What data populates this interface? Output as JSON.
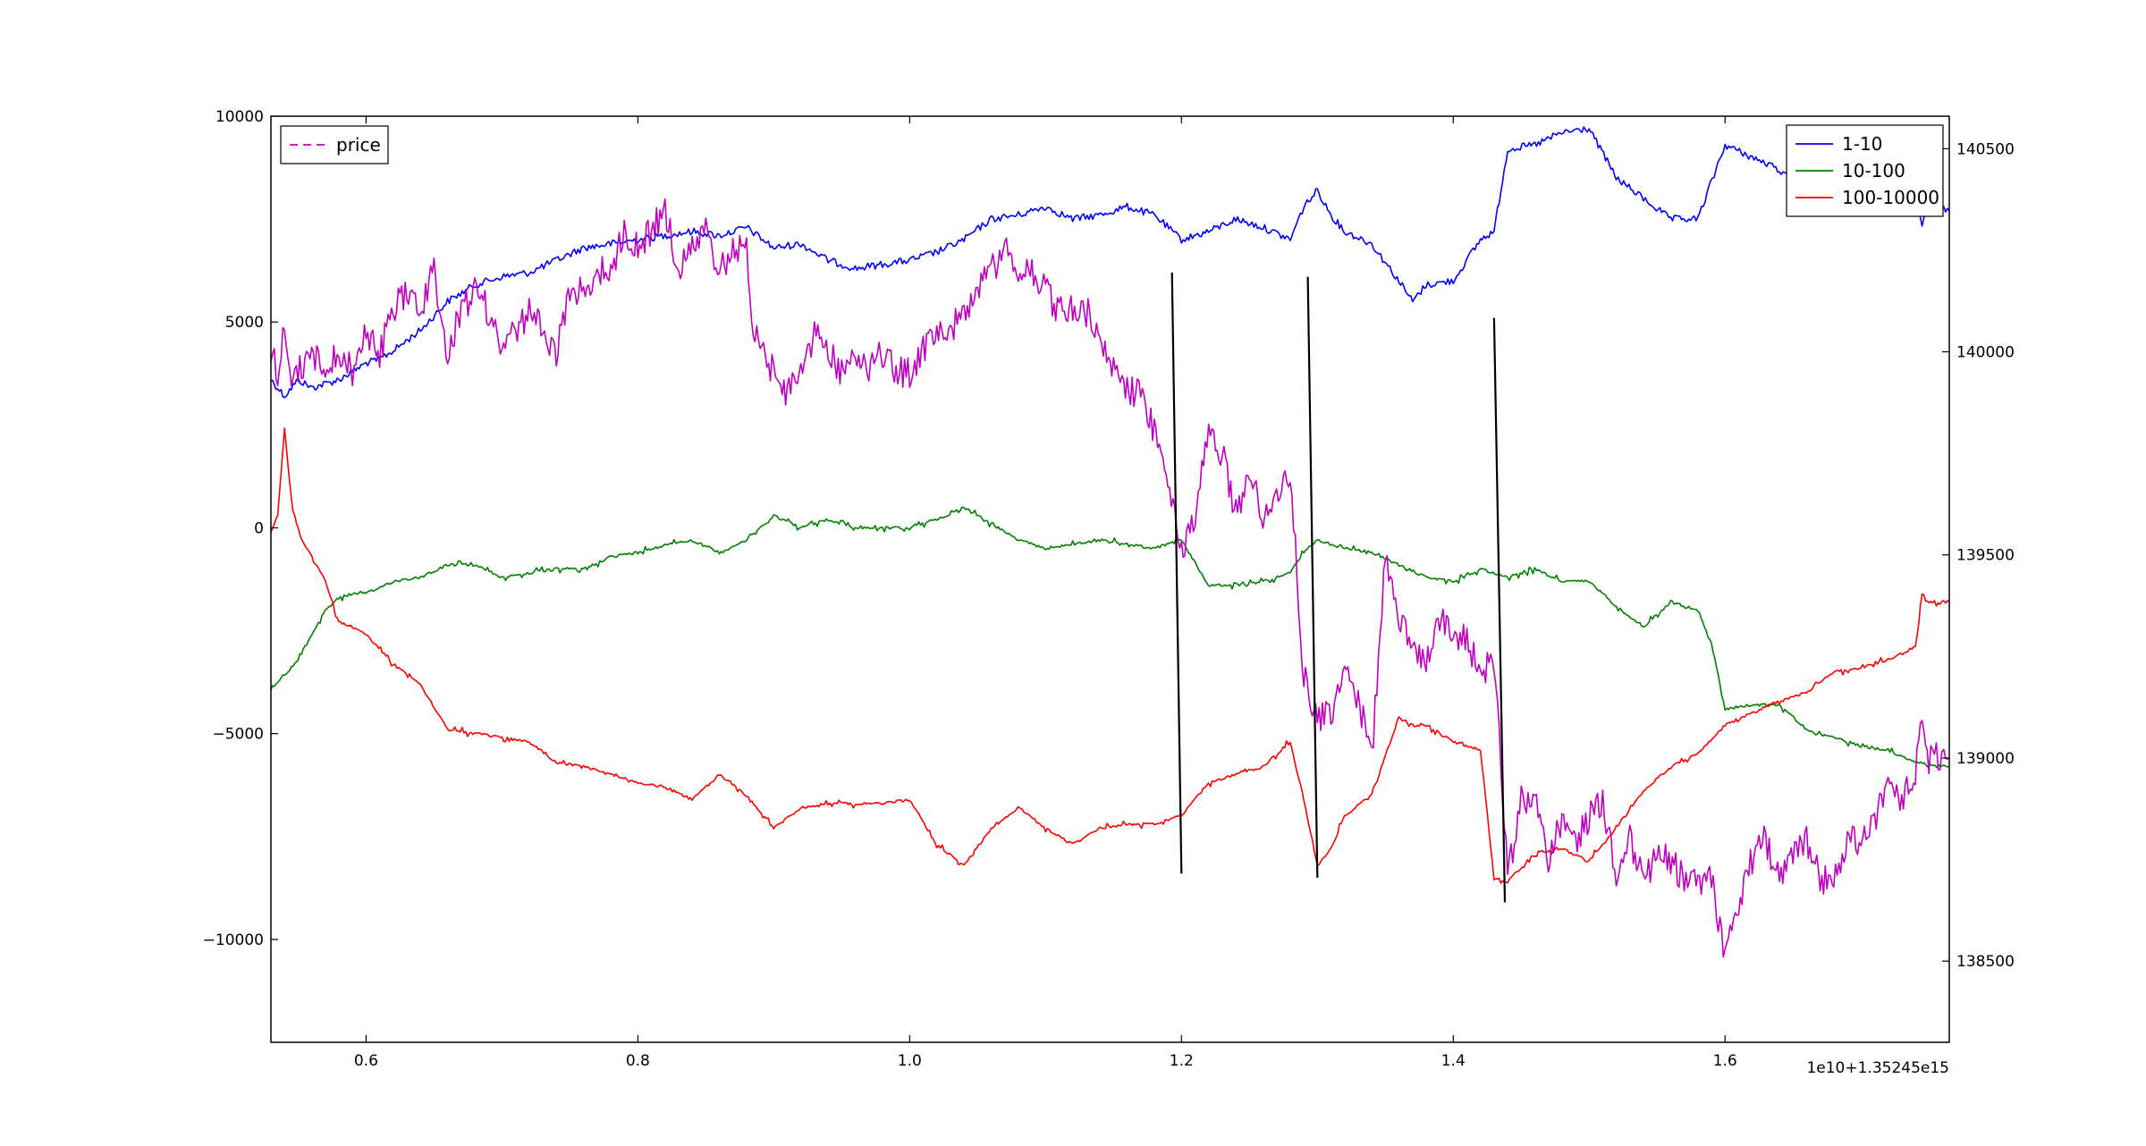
{
  "chart_data": {
    "type": "line",
    "title": "",
    "xlabel": "",
    "ylabel": "",
    "x_offset_text": "1e10+1.35245e15",
    "xlim": [
      0.53,
      1.765
    ],
    "ylim_left": [
      -12500,
      10000
    ],
    "ylim_right": [
      138300,
      140580
    ],
    "grid": false,
    "x_ticks": [
      0.6,
      0.8,
      1.0,
      1.2,
      1.4,
      1.6
    ],
    "x_tick_labels": [
      "0.6",
      "0.8",
      "1.0",
      "1.2",
      "1.4",
      "1.6"
    ],
    "y_left_ticks": [
      10000,
      5000,
      0,
      -5000,
      -10000
    ],
    "y_left_tick_labels": [
      "10000",
      "5000",
      "0",
      "−5000",
      "−10000"
    ],
    "y_right_ticks": [
      140500,
      140000,
      139500,
      139000,
      138500
    ],
    "y_right_tick_labels": [
      "140500",
      "140000",
      "139500",
      "139000",
      "138500"
    ],
    "legend_left": {
      "placement": "upper-left",
      "entries": [
        {
          "label": "price",
          "color": "#bf00bf",
          "dashed": true
        }
      ]
    },
    "legend_right": {
      "placement": "upper-right",
      "entries": [
        {
          "label": "1-10",
          "color": "#0000ff"
        },
        {
          "label": "10-100",
          "color": "#008000"
        },
        {
          "label": "100-10000",
          "color": "#ff0000"
        }
      ]
    },
    "series": [
      {
        "name": "1-10",
        "axis": "left",
        "color": "#0000ff",
        "x": [
          0.53,
          0.54,
          0.55,
          0.56,
          0.57,
          0.58,
          0.59,
          0.6,
          0.61,
          0.62,
          0.64,
          0.66,
          0.68,
          0.7,
          0.72,
          0.74,
          0.76,
          0.78,
          0.8,
          0.82,
          0.84,
          0.86,
          0.88,
          0.9,
          0.92,
          0.94,
          0.96,
          0.98,
          1.0,
          1.02,
          1.04,
          1.06,
          1.08,
          1.1,
          1.12,
          1.14,
          1.16,
          1.18,
          1.2,
          1.22,
          1.24,
          1.26,
          1.28,
          1.29,
          1.3,
          1.31,
          1.32,
          1.34,
          1.36,
          1.37,
          1.38,
          1.4,
          1.42,
          1.43,
          1.44,
          1.46,
          1.48,
          1.5,
          1.52,
          1.54,
          1.56,
          1.58,
          1.6,
          1.62,
          1.64,
          1.66,
          1.68,
          1.7,
          1.72,
          1.74,
          1.745,
          1.75,
          1.765
        ],
        "y": [
          3600,
          3200,
          3600,
          3400,
          3500,
          3600,
          3800,
          4000,
          4100,
          4300,
          4800,
          5500,
          5900,
          6100,
          6200,
          6500,
          6800,
          6900,
          7000,
          7100,
          7200,
          7100,
          7300,
          6800,
          6900,
          6500,
          6300,
          6400,
          6500,
          6700,
          7000,
          7500,
          7600,
          7800,
          7500,
          7600,
          7800,
          7600,
          7000,
          7200,
          7500,
          7300,
          7000,
          7800,
          8200,
          7600,
          7200,
          6900,
          6000,
          5500,
          5900,
          6000,
          7000,
          7200,
          9200,
          9300,
          9600,
          9700,
          8500,
          8000,
          7500,
          7500,
          9300,
          9000,
          8700,
          8100,
          8200,
          8600,
          8300,
          8200,
          7400,
          7800,
          7700
        ]
      },
      {
        "name": "10-100",
        "axis": "left",
        "color": "#008000",
        "x": [
          0.53,
          0.54,
          0.55,
          0.56,
          0.57,
          0.58,
          0.59,
          0.6,
          0.62,
          0.64,
          0.66,
          0.68,
          0.7,
          0.72,
          0.74,
          0.76,
          0.78,
          0.8,
          0.82,
          0.84,
          0.86,
          0.88,
          0.9,
          0.92,
          0.94,
          0.96,
          0.98,
          1.0,
          1.02,
          1.04,
          1.06,
          1.08,
          1.1,
          1.12,
          1.14,
          1.16,
          1.18,
          1.2,
          1.22,
          1.24,
          1.26,
          1.28,
          1.29,
          1.3,
          1.32,
          1.34,
          1.36,
          1.38,
          1.4,
          1.42,
          1.44,
          1.46,
          1.48,
          1.5,
          1.52,
          1.54,
          1.56,
          1.58,
          1.59,
          1.6,
          1.62,
          1.64,
          1.66,
          1.68,
          1.7,
          1.72,
          1.74,
          1.765
        ],
        "y": [
          -3900,
          -3600,
          -3200,
          -2600,
          -2000,
          -1700,
          -1600,
          -1600,
          -1300,
          -1200,
          -900,
          -900,
          -1200,
          -1100,
          -1000,
          -1000,
          -700,
          -600,
          -400,
          -300,
          -600,
          -300,
          300,
          0,
          200,
          0,
          0,
          0,
          200,
          500,
          100,
          -300,
          -500,
          -400,
          -300,
          -400,
          -500,
          -300,
          -1400,
          -1400,
          -1300,
          -1100,
          -600,
          -300,
          -500,
          -600,
          -900,
          -1200,
          -1300,
          -1000,
          -1200,
          -1000,
          -1300,
          -1300,
          -1900,
          -2400,
          -1800,
          -2000,
          -2800,
          -4400,
          -4300,
          -4300,
          -4900,
          -5100,
          -5300,
          -5400,
          -5700,
          -5800
        ]
      },
      {
        "name": "100-10000",
        "axis": "left",
        "color": "#ff0000",
        "x": [
          0.53,
          0.535,
          0.54,
          0.545,
          0.55,
          0.56,
          0.57,
          0.58,
          0.59,
          0.6,
          0.62,
          0.64,
          0.66,
          0.68,
          0.7,
          0.72,
          0.74,
          0.76,
          0.78,
          0.8,
          0.82,
          0.84,
          0.86,
          0.88,
          0.9,
          0.92,
          0.94,
          0.96,
          0.98,
          1.0,
          1.02,
          1.04,
          1.06,
          1.08,
          1.1,
          1.12,
          1.14,
          1.16,
          1.18,
          1.2,
          1.22,
          1.24,
          1.26,
          1.28,
          1.29,
          1.3,
          1.31,
          1.32,
          1.34,
          1.36,
          1.37,
          1.38,
          1.4,
          1.42,
          1.43,
          1.44,
          1.46,
          1.48,
          1.5,
          1.52,
          1.54,
          1.56,
          1.58,
          1.6,
          1.62,
          1.64,
          1.66,
          1.68,
          1.7,
          1.72,
          1.74,
          1.745,
          1.75,
          1.765
        ],
        "y": [
          -100,
          300,
          2400,
          700,
          -100,
          -700,
          -1300,
          -2300,
          -2400,
          -2600,
          -3300,
          -3800,
          -4900,
          -5000,
          -5100,
          -5200,
          -5700,
          -5800,
          -6000,
          -6200,
          -6300,
          -6600,
          -6000,
          -6500,
          -7300,
          -6800,
          -6700,
          -6700,
          -6700,
          -6600,
          -7700,
          -8200,
          -7300,
          -6800,
          -7300,
          -7700,
          -7300,
          -7200,
          -7200,
          -7000,
          -6200,
          -6000,
          -5800,
          -5200,
          -6600,
          -8200,
          -7800,
          -7000,
          -6500,
          -4600,
          -4800,
          -4800,
          -5200,
          -5400,
          -8500,
          -8600,
          -7900,
          -7800,
          -8100,
          -7300,
          -6400,
          -5800,
          -5500,
          -4800,
          -4500,
          -4200,
          -4000,
          -3500,
          -3400,
          -3200,
          -2900,
          -1600,
          -1800,
          -1800
        ]
      },
      {
        "name": "price",
        "axis": "right",
        "color": "#bf00bf",
        "dashed": true,
        "x": [
          0.53,
          0.535,
          0.54,
          0.545,
          0.55,
          0.56,
          0.57,
          0.58,
          0.59,
          0.6,
          0.61,
          0.62,
          0.63,
          0.64,
          0.65,
          0.66,
          0.67,
          0.68,
          0.69,
          0.7,
          0.71,
          0.72,
          0.73,
          0.74,
          0.75,
          0.76,
          0.77,
          0.78,
          0.79,
          0.8,
          0.81,
          0.82,
          0.83,
          0.84,
          0.85,
          0.86,
          0.87,
          0.88,
          0.885,
          0.89,
          0.9,
          0.91,
          0.92,
          0.93,
          0.94,
          0.95,
          0.96,
          0.97,
          0.98,
          0.99,
          1.0,
          1.01,
          1.02,
          1.03,
          1.04,
          1.05,
          1.06,
          1.07,
          1.08,
          1.09,
          1.1,
          1.11,
          1.12,
          1.13,
          1.14,
          1.15,
          1.16,
          1.17,
          1.18,
          1.19,
          1.195,
          1.2,
          1.21,
          1.22,
          1.23,
          1.24,
          1.25,
          1.26,
          1.27,
          1.28,
          1.285,
          1.29,
          1.3,
          1.31,
          1.32,
          1.33,
          1.34,
          1.35,
          1.36,
          1.37,
          1.38,
          1.39,
          1.4,
          1.41,
          1.42,
          1.43,
          1.435,
          1.44,
          1.45,
          1.46,
          1.47,
          1.48,
          1.49,
          1.5,
          1.51,
          1.52,
          1.53,
          1.54,
          1.55,
          1.56,
          1.57,
          1.58,
          1.59,
          1.6,
          1.61,
          1.62,
          1.63,
          1.64,
          1.65,
          1.66,
          1.67,
          1.68,
          1.69,
          1.7,
          1.71,
          1.72,
          1.73,
          1.74,
          1.745,
          1.75,
          1.765
        ],
        "y": [
          140000,
          139950,
          140050,
          139900,
          139950,
          140000,
          139950,
          140000,
          139950,
          140050,
          140000,
          140100,
          140150,
          140100,
          140200,
          140000,
          140100,
          140150,
          140100,
          140000,
          140050,
          140100,
          140050,
          140000,
          140150,
          140150,
          140200,
          140200,
          140300,
          140250,
          140300,
          140350,
          140200,
          140250,
          140300,
          140200,
          140250,
          140250,
          140050,
          140000,
          139950,
          139900,
          139950,
          140050,
          140000,
          139950,
          140000,
          139950,
          140000,
          139950,
          139950,
          140000,
          140050,
          140050,
          140100,
          140150,
          140200,
          140250,
          140200,
          140200,
          140150,
          140100,
          140100,
          140100,
          140050,
          139950,
          139900,
          139900,
          139800,
          139700,
          139600,
          139500,
          139600,
          139800,
          139750,
          139600,
          139700,
          139600,
          139650,
          139700,
          139450,
          139200,
          139100,
          139100,
          139200,
          139150,
          139000,
          139500,
          139350,
          139250,
          139250,
          139350,
          139300,
          139300,
          139200,
          139250,
          139000,
          138700,
          138900,
          138900,
          138750,
          138850,
          138800,
          138850,
          138900,
          138700,
          138800,
          138700,
          138750,
          138750,
          138700,
          138700,
          138700,
          138500,
          138650,
          138750,
          138800,
          138700,
          138750,
          138800,
          138700,
          138700,
          138800,
          138800,
          138850,
          138950,
          138900,
          138950,
          139100,
          139000,
          139000
        ]
      },
      {
        "name": "",
        "axis": "left",
        "color": "#000000",
        "x": [
          1.193,
          1.2
        ],
        "y": [
          6200,
          -8400
        ]
      },
      {
        "name": "",
        "axis": "left",
        "color": "#000000",
        "x": [
          1.293,
          1.3
        ],
        "y": [
          6100,
          -8500
        ]
      },
      {
        "name": "",
        "axis": "left",
        "color": "#000000",
        "x": [
          1.43,
          1.438
        ],
        "y": [
          5100,
          -9100
        ]
      }
    ]
  }
}
